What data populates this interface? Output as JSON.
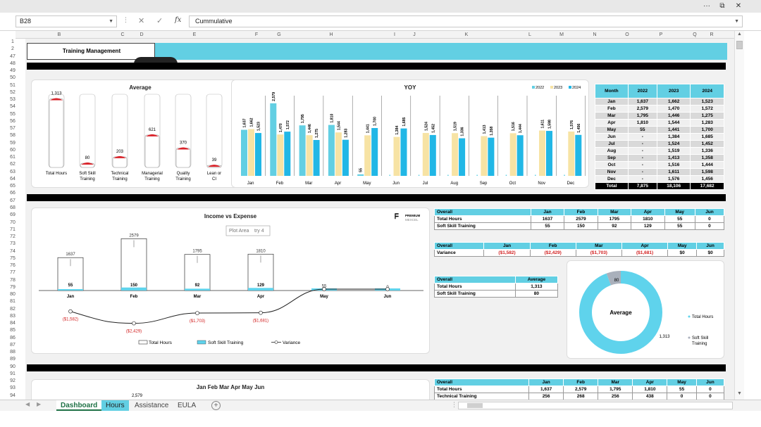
{
  "window": {
    "restore_glyph": "⧉",
    "close_glyph": "✕",
    "more_glyph": "···"
  },
  "formula_bar": {
    "cell_ref": "B28",
    "formula": "Cummulative"
  },
  "columns": [
    "B",
    "C",
    "D",
    "E",
    "F",
    "G",
    "H",
    "I",
    "J",
    "K",
    "L",
    "M",
    "N",
    "O",
    "P",
    "Q",
    "R"
  ],
  "rows": [
    "1",
    "2",
    "47",
    "48",
    "49",
    "50",
    "51",
    "52",
    "53",
    "54",
    "55",
    "56",
    "57",
    "58",
    "59",
    "60",
    "61",
    "62",
    "63",
    "64",
    "65",
    "66",
    "67",
    "68",
    "69",
    "70",
    "71",
    "72",
    "73",
    "74",
    "75",
    "76",
    "77",
    "78",
    "79",
    "80",
    "81",
    "82",
    "83",
    "84",
    "85",
    "86",
    "87",
    "88",
    "89",
    "90",
    "91",
    "92",
    "93",
    "94"
  ],
  "banner": {
    "title": "Training Management"
  },
  "average_chart": {
    "title": "Average",
    "categories": [
      "Total Hours",
      "Soft Skill Training",
      "Technical Training",
      "Managerial Training",
      "Quality Training",
      "Lean or CI"
    ],
    "values": [
      1313,
      80,
      203,
      621,
      370,
      39
    ],
    "value_labels": [
      "1,313",
      "80",
      "203",
      "621",
      "370",
      "39"
    ]
  },
  "yoy_chart": {
    "title": "YOY",
    "legend": [
      "2022",
      "2023",
      "2024"
    ],
    "colors": [
      "#62cfe3",
      "#f7e3a4",
      "#21b7e6"
    ],
    "categories": [
      "Jan",
      "Feb",
      "Mar",
      "Apr",
      "May",
      "Jun",
      "Jul",
      "Aug",
      "Sep",
      "Oct",
      "Nov",
      "Dec"
    ],
    "series": [
      {
        "name": "2022",
        "values": [
          1637,
          2579,
          1795,
          1810,
          55,
          0,
          0,
          0,
          0,
          0,
          0,
          0
        ],
        "labels": [
          "1,637",
          "2,579",
          "1,795",
          "1,810",
          "55",
          "",
          "",
          "",
          "",
          "",
          "",
          ""
        ]
      },
      {
        "name": "2023",
        "values": [
          1662,
          1470,
          1446,
          1544,
          1441,
          1384,
          1524,
          1519,
          1413,
          1516,
          1611,
          1576
        ],
        "labels": [
          "1,662",
          "1,470",
          "1,446",
          "1,544",
          "1,441",
          "1,384",
          "1,524",
          "1,519",
          "1,413",
          "1,516",
          "1,611",
          "1,576"
        ]
      },
      {
        "name": "2024",
        "values": [
          1523,
          1572,
          1275,
          1283,
          1700,
          1685,
          1452,
          1336,
          1358,
          1444,
          1598,
          1456
        ],
        "labels": [
          "1,523",
          "1,572",
          "1,275",
          "1,283",
          "1,700",
          "1,685",
          "1,452",
          "1,336",
          "1,358",
          "1,444",
          "1,598",
          "1,456"
        ]
      }
    ]
  },
  "month_table": {
    "headers": [
      "Month",
      "2022",
      "2023",
      "2024"
    ],
    "rows": [
      [
        "Jan",
        "1,637",
        "1,662",
        "1,523"
      ],
      [
        "Feb",
        "2,579",
        "1,470",
        "1,572"
      ],
      [
        "Mar",
        "1,795",
        "1,446",
        "1,275"
      ],
      [
        "Apr",
        "1,810",
        "1,544",
        "1,283"
      ],
      [
        "May",
        "55",
        "1,441",
        "1,700"
      ],
      [
        "Jun",
        "-",
        "1,384",
        "1,685"
      ],
      [
        "Jul",
        "-",
        "1,524",
        "1,452"
      ],
      [
        "Aug",
        "-",
        "1,519",
        "1,336"
      ],
      [
        "Sep",
        "-",
        "1,413",
        "1,358"
      ],
      [
        "Oct",
        "-",
        "1,516",
        "1,444"
      ],
      [
        "Nov",
        "-",
        "1,611",
        "1,598"
      ],
      [
        "Dec",
        "-",
        "1,576",
        "1,456"
      ]
    ],
    "total": [
      "Total",
      "7,875",
      "18,106",
      "17,682"
    ]
  },
  "income_chart": {
    "title": "Income vs Expense",
    "tooltip": "Plot Area",
    "tooltip_suffix": "try 4",
    "brand_top": "PREMIUM",
    "brand_bottom": "MEXCEL",
    "categories": [
      "Jan",
      "Feb",
      "Mar",
      "Apr",
      "May",
      "Jun"
    ],
    "total_hours": [
      1637,
      2579,
      1795,
      1810,
      55,
      0
    ],
    "total_labels": [
      "1637",
      "2579",
      "1795",
      "1810",
      "55",
      "0"
    ],
    "soft_skill": [
      55,
      150,
      92,
      129,
      55,
      0
    ],
    "soft_labels": [
      "55",
      "150",
      "92",
      "129",
      "",
      ""
    ],
    "variance": [
      -1582,
      -2429,
      -1703,
      -1681,
      0,
      0
    ],
    "variance_labels": [
      "($1,582)",
      "($2,429)",
      "($1,703)",
      "($1,681)",
      "",
      ""
    ],
    "legend": [
      "Total Hours",
      "Soft Skill Training",
      "Variance"
    ]
  },
  "overall_table": {
    "headers": [
      "Overall",
      "Jan",
      "Feb",
      "Mar",
      "Apr",
      "May",
      "Jun"
    ],
    "rows": [
      [
        "Total Hours",
        "1637",
        "2579",
        "1795",
        "1810",
        "55",
        "0"
      ],
      [
        "Soft Skill Training",
        "55",
        "150",
        "92",
        "129",
        "55",
        "0"
      ]
    ]
  },
  "variance_table": {
    "headers": [
      "Overall",
      "Jan",
      "Feb",
      "Mar",
      "Apr",
      "May",
      "Jun"
    ],
    "row": [
      "Variance",
      "($1,582)",
      "($2,429)",
      "($1,703)",
      "($1,681)",
      "$0",
      "$0"
    ]
  },
  "average_table": {
    "headers": [
      "Overall",
      "Average"
    ],
    "rows": [
      [
        "Total Hours",
        "1,313"
      ],
      [
        "Soft Skill Training",
        "80"
      ]
    ]
  },
  "donut": {
    "center_label": "Average",
    "values": [
      1313,
      80
    ],
    "value_labels": [
      "1,313",
      "80"
    ],
    "legend": [
      "Total Hours",
      "Soft Skill Training"
    ],
    "colors": [
      "#5fd3ec",
      "#a9b0bb"
    ]
  },
  "bottom_chart": {
    "title": "Jan Feb Mar Apr May Jun",
    "top_label": "2,579"
  },
  "bottom_table": {
    "headers": [
      "Overall",
      "Jan",
      "Feb",
      "Mar",
      "Apr",
      "May",
      "Jun"
    ],
    "rows": [
      [
        "Total Hours",
        "1,637",
        "2,579",
        "1,795",
        "1,810",
        "55",
        "0"
      ],
      [
        "Technical Training",
        "256",
        "268",
        "256",
        "438",
        "0",
        "0"
      ]
    ]
  },
  "tabs": [
    "Dashboard",
    "Hours",
    "Assistance",
    "EULA"
  ],
  "add_sheet_glyph": "+"
}
